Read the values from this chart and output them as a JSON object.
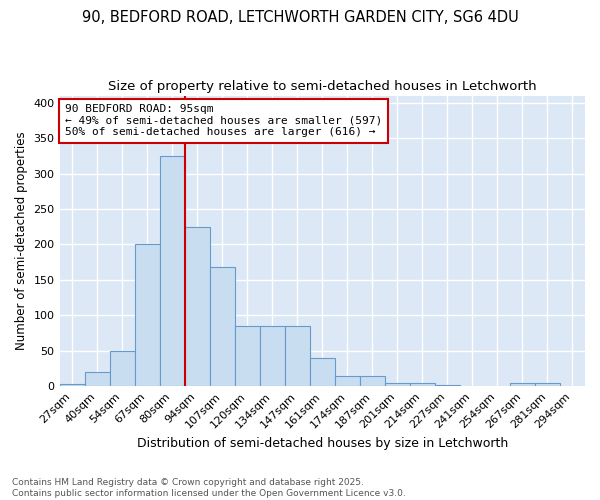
{
  "title1": "90, BEDFORD ROAD, LETCHWORTH GARDEN CITY, SG6 4DU",
  "title2": "Size of property relative to semi-detached houses in Letchworth",
  "xlabel": "Distribution of semi-detached houses by size in Letchworth",
  "ylabel": "Number of semi-detached properties",
  "bar_color": "#c8ddf0",
  "bar_edge_color": "#6699cc",
  "categories": [
    "27sqm",
    "40sqm",
    "54sqm",
    "67sqm",
    "80sqm",
    "94sqm",
    "107sqm",
    "120sqm",
    "134sqm",
    "147sqm",
    "161sqm",
    "174sqm",
    "187sqm",
    "201sqm",
    "214sqm",
    "227sqm",
    "241sqm",
    "254sqm",
    "267sqm",
    "281sqm",
    "294sqm"
  ],
  "values": [
    3,
    20,
    50,
    200,
    325,
    225,
    168,
    85,
    85,
    85,
    40,
    15,
    15,
    5,
    5,
    2,
    1,
    1,
    5,
    5,
    1
  ],
  "vline_color": "#cc0000",
  "annotation_text": "90 BEDFORD ROAD: 95sqm\n← 49% of semi-detached houses are smaller (597)\n50% of semi-detached houses are larger (616) →",
  "box_color": "#ffffff",
  "box_edge_color": "#cc0000",
  "ylim": [
    0,
    410
  ],
  "yticks": [
    0,
    50,
    100,
    150,
    200,
    250,
    300,
    350,
    400
  ],
  "fig_bg_color": "#ffffff",
  "bg_color": "#dce8f5",
  "footer": "Contains HM Land Registry data © Crown copyright and database right 2025.\nContains public sector information licensed under the Open Government Licence v3.0.",
  "grid_color": "#ffffff",
  "title_fontsize": 10.5,
  "subtitle_fontsize": 9.5,
  "tick_fontsize": 8,
  "ylabel_fontsize": 8.5,
  "xlabel_fontsize": 9,
  "annotation_fontsize": 8,
  "footer_fontsize": 6.5
}
